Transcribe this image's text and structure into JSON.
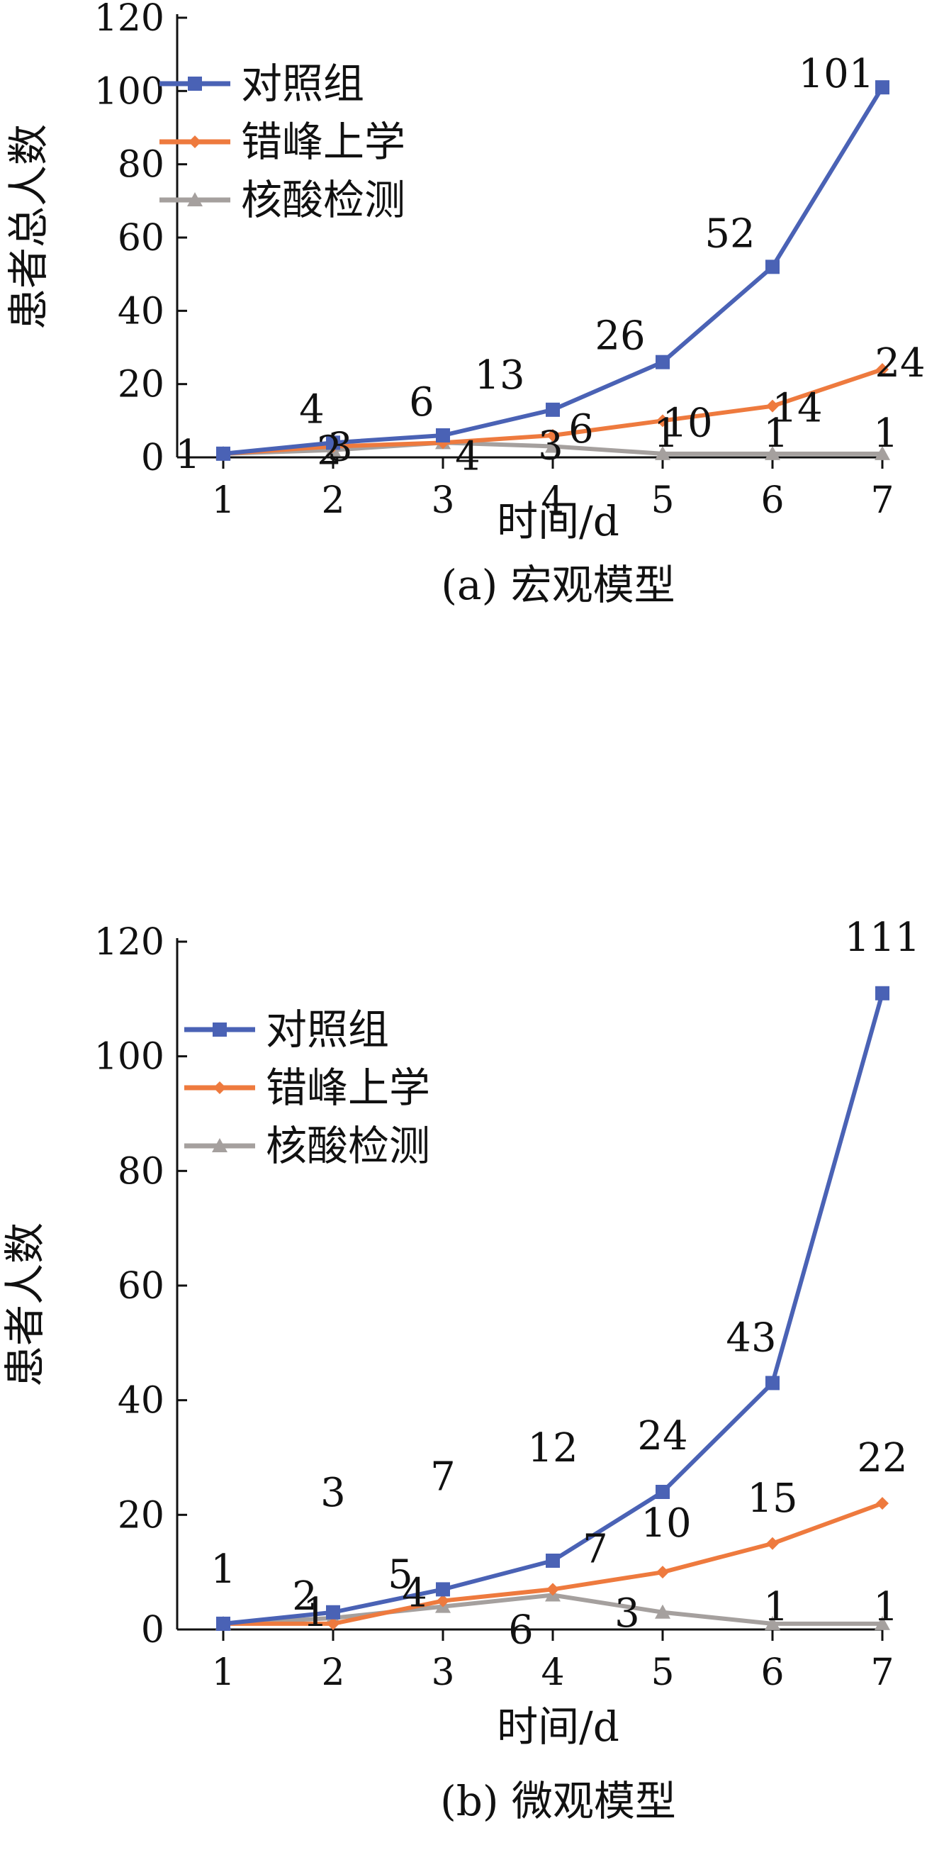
{
  "colors": {
    "blue": "#4a62b5",
    "orange": "#ee7a3e",
    "gray": "#a5a09e",
    "callout": "#9a9593"
  },
  "chart_data": [
    {
      "type": "line",
      "caption": "(a) 宏观模型",
      "xlabel": "时间/d",
      "ylabel": "患者总人数",
      "x": [
        1,
        2,
        3,
        4,
        5,
        6,
        7
      ],
      "xlim": [
        1,
        7
      ],
      "ylim": [
        0,
        120
      ],
      "yticks": [
        0,
        20,
        40,
        60,
        80,
        100,
        120
      ],
      "legend_position": "top-left",
      "series": [
        {
          "name": "对照组",
          "marker": "square",
          "color": "blue",
          "values": [
            1,
            4,
            6,
            13,
            26,
            52,
            101
          ],
          "labels": [
            "1",
            "4",
            "6",
            "13",
            "26",
            "52",
            "101"
          ]
        },
        {
          "name": "错峰上学",
          "marker": "diamond",
          "color": "orange",
          "values": [
            1,
            3,
            4,
            6,
            10,
            14,
            24
          ],
          "labels": [
            "",
            "3",
            "4",
            "6",
            "10",
            "14",
            "24"
          ]
        },
        {
          "name": "核酸检测",
          "marker": "triangle",
          "color": "gray",
          "values": [
            1,
            2,
            4,
            3,
            1,
            1,
            1
          ],
          "labels": [
            "",
            "2",
            "",
            "3",
            "1",
            "1",
            "1"
          ]
        }
      ]
    },
    {
      "type": "line",
      "caption": "(b) 微观模型",
      "xlabel": "时间/d",
      "ylabel": "患者人数",
      "x": [
        1,
        2,
        3,
        4,
        5,
        6,
        7
      ],
      "xlim": [
        1,
        7
      ],
      "ylim": [
        0,
        120
      ],
      "yticks": [
        0,
        20,
        40,
        60,
        80,
        100,
        120
      ],
      "legend_position": "top-left",
      "series": [
        {
          "name": "对照组",
          "marker": "square",
          "color": "blue",
          "values": [
            1,
            3,
            7,
            12,
            24,
            43,
            111
          ],
          "labels": [
            "1",
            "3",
            "7",
            "12",
            "24",
            "43",
            "111"
          ]
        },
        {
          "name": "错峰上学",
          "marker": "diamond",
          "color": "orange",
          "values": [
            1,
            1,
            5,
            7,
            10,
            15,
            22
          ],
          "labels": [
            "",
            "1",
            "5",
            "7",
            "10",
            "15",
            "22"
          ]
        },
        {
          "name": "核酸检测",
          "marker": "triangle",
          "color": "gray",
          "values": [
            1,
            2,
            4,
            6,
            3,
            1,
            1
          ],
          "labels": [
            "",
            "2",
            "4",
            "6",
            "3",
            "1",
            "1"
          ]
        }
      ]
    }
  ]
}
